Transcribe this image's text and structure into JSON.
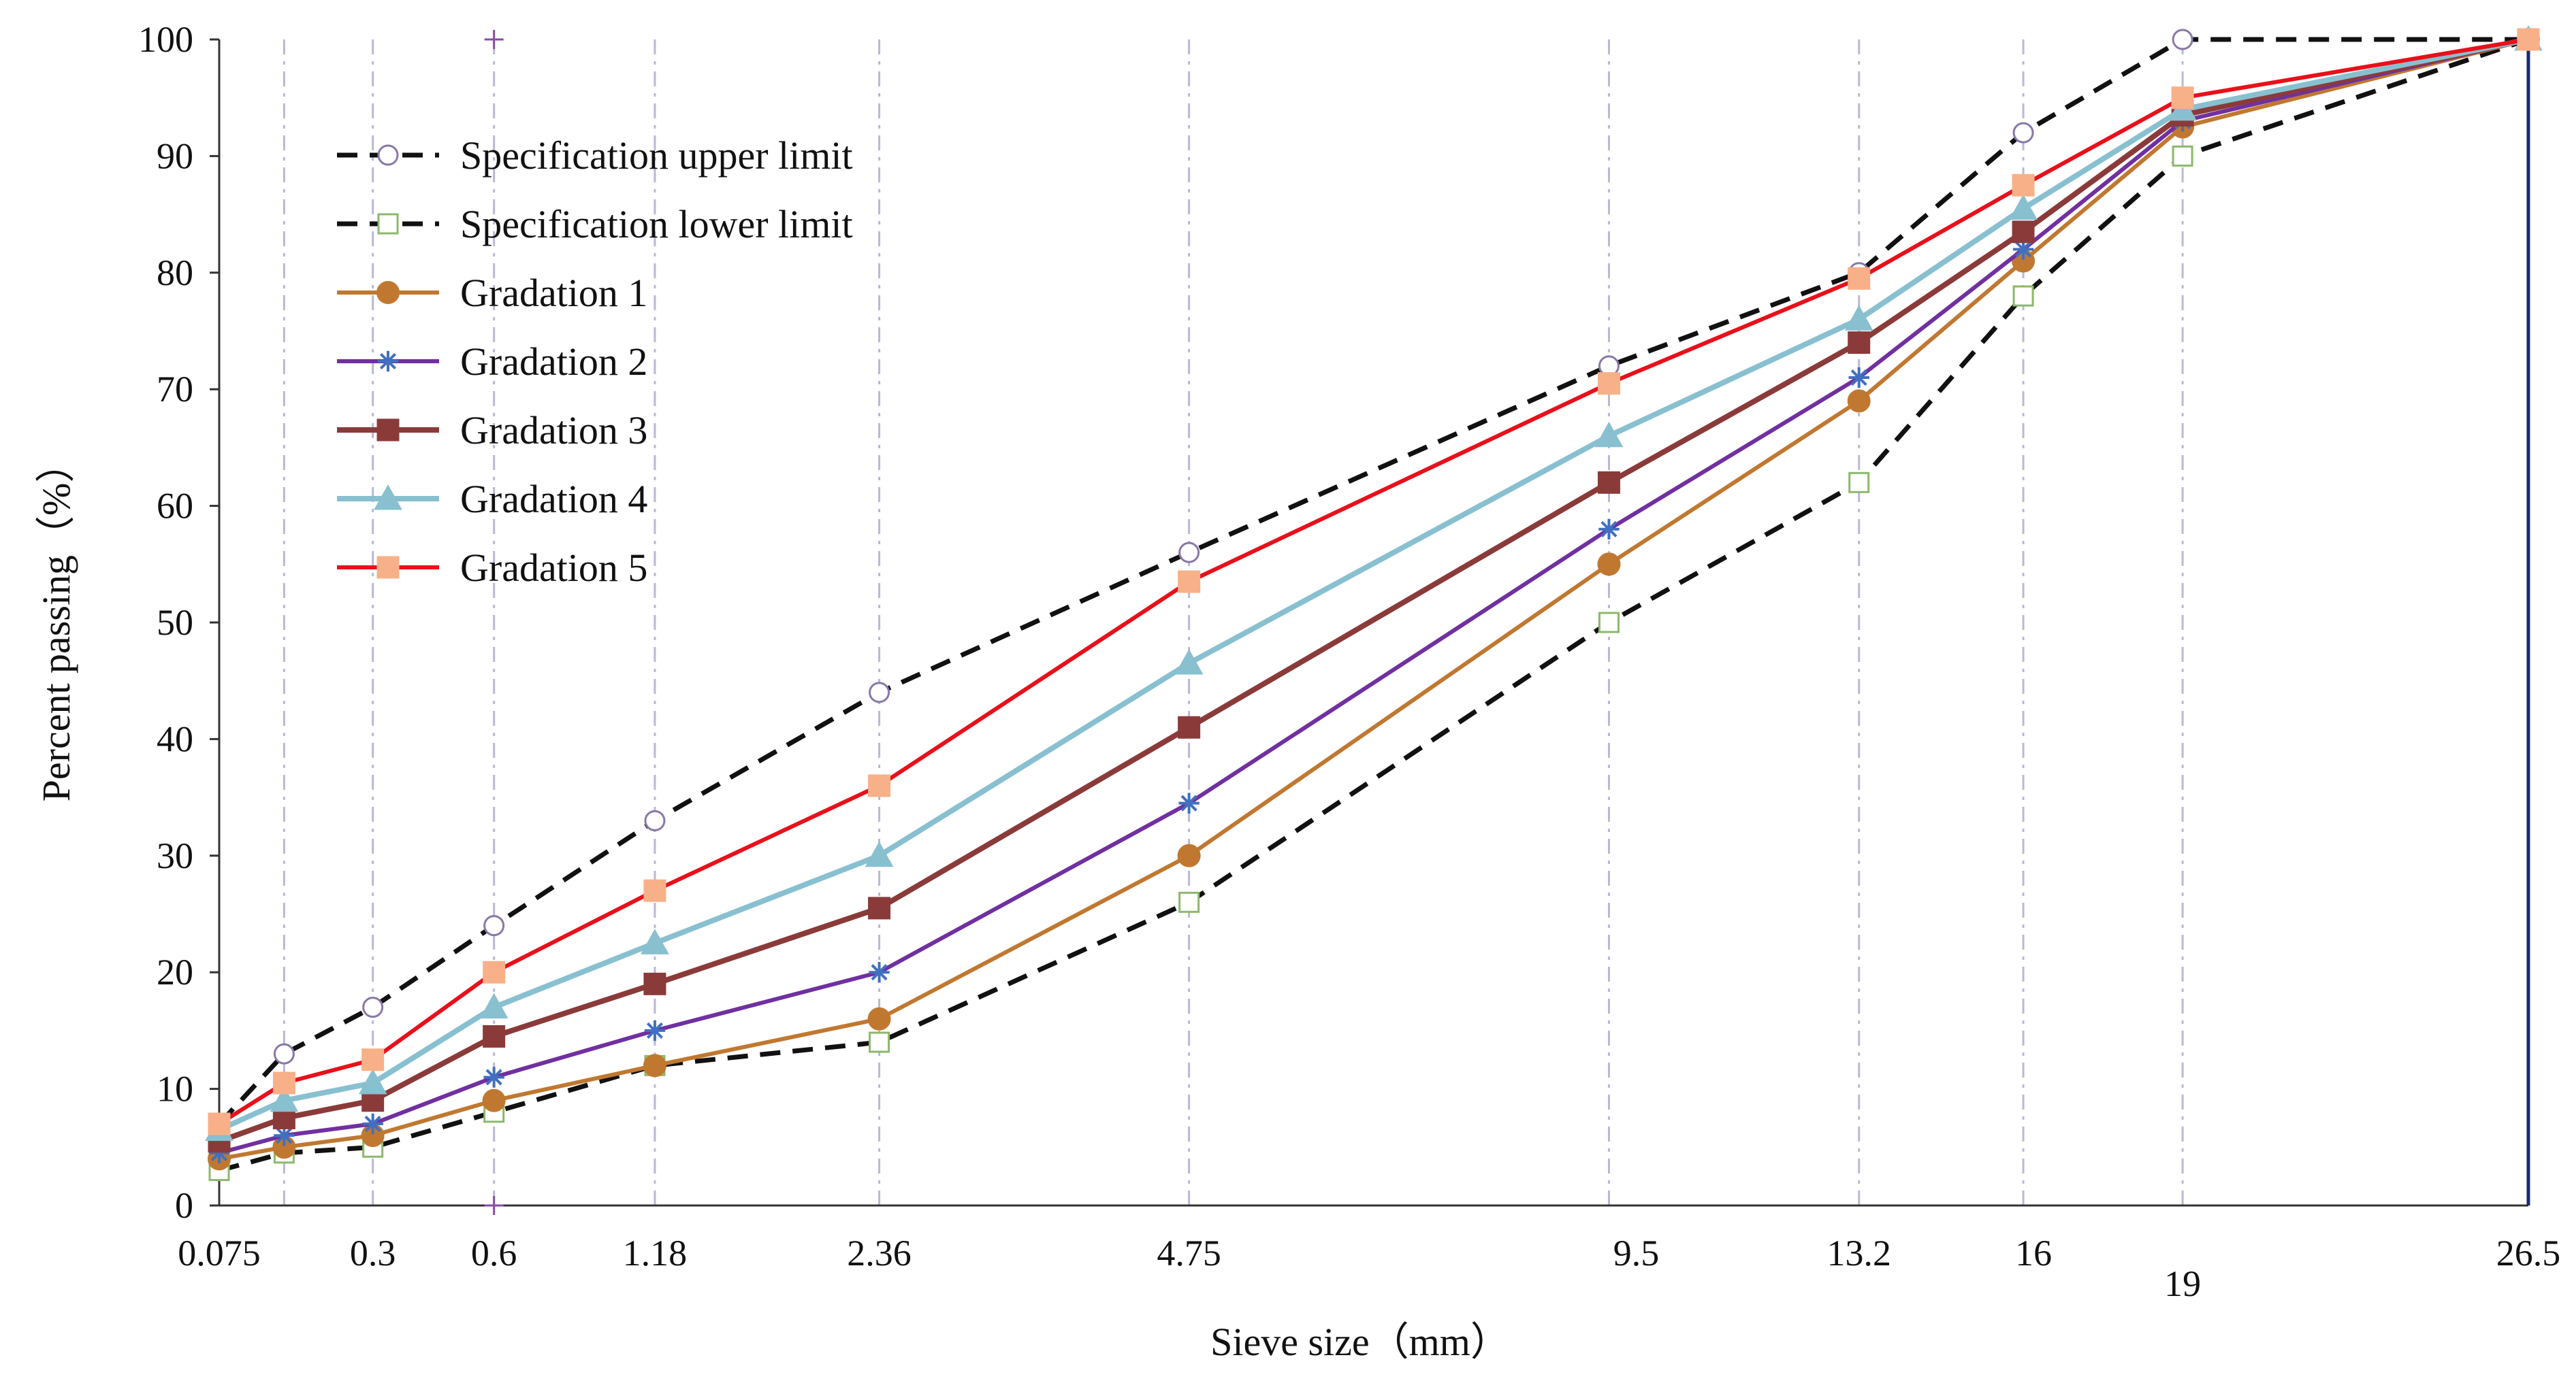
{
  "chart_data": {
    "type": "line",
    "title": "",
    "xlabel": "Sieve  size（mm）",
    "ylabel": "Percent passing（%）",
    "ylim": [
      0,
      100
    ],
    "yticks": [
      0,
      10,
      20,
      30,
      40,
      50,
      60,
      70,
      80,
      90,
      100
    ],
    "x_scale": "gradation (power 0.45)",
    "sieves": [
      0.075,
      0.15,
      0.3,
      0.6,
      1.18,
      2.36,
      4.75,
      9.5,
      13.2,
      16,
      19,
      26.5
    ],
    "x_tick_labels": [
      {
        "value": 0.075,
        "label": "0.075"
      },
      {
        "value": 0.3,
        "label": "0.3"
      },
      {
        "value": 0.6,
        "label": "0.6"
      },
      {
        "value": 1.18,
        "label": "1.18"
      },
      {
        "value": 2.36,
        "label": "2.36"
      },
      {
        "value": 4.75,
        "label": "4.75"
      },
      {
        "value": 9.5,
        "label": "9.5"
      },
      {
        "value": 13.2,
        "label": "13.2"
      },
      {
        "value": 16,
        "label": "16"
      },
      {
        "value": 19,
        "label": "19"
      },
      {
        "value": 26.5,
        "label": "26.5"
      }
    ],
    "legend_position": "top-left",
    "series": [
      {
        "name": "Specification upper limit",
        "color": "#111111",
        "dash": true,
        "marker": "circle-open",
        "marker_color": "#8878a8",
        "width": 3,
        "x": [
          0.075,
          0.15,
          0.3,
          0.6,
          1.18,
          2.36,
          4.75,
          9.5,
          13.2,
          16,
          19,
          26.5
        ],
        "values": [
          7,
          13,
          17,
          24,
          33,
          44,
          56,
          72,
          80,
          92,
          100,
          100
        ]
      },
      {
        "name": "Specification lower limit",
        "color": "#111111",
        "dash": true,
        "marker": "square-open",
        "marker_color": "#8cb86c",
        "width": 3,
        "x": [
          0.075,
          0.15,
          0.3,
          0.6,
          1.18,
          2.36,
          4.75,
          9.5,
          13.2,
          16,
          19,
          26.5
        ],
        "values": [
          3,
          4.5,
          5,
          8,
          12,
          14,
          26,
          50,
          62,
          78,
          90,
          100
        ]
      },
      {
        "name": "Gradation 1",
        "color": "#c07830",
        "dash": false,
        "marker": "circle",
        "marker_color": "#c07830",
        "width": 2,
        "x": [
          0.075,
          0.15,
          0.3,
          0.6,
          1.18,
          2.36,
          4.75,
          9.5,
          13.2,
          16,
          19,
          26.5
        ],
        "values": [
          4,
          5,
          6,
          9,
          12,
          16,
          30,
          55,
          69,
          81,
          92.5,
          100
        ]
      },
      {
        "name": "Gradation 2",
        "color": "#7030a0",
        "dash": false,
        "marker": "star",
        "marker_color": "#4070c0",
        "width": 2,
        "x": [
          0.075,
          0.15,
          0.3,
          0.6,
          1.18,
          2.36,
          4.75,
          9.5,
          13.2,
          16,
          19,
          26.5
        ],
        "values": [
          4.5,
          6,
          7,
          11,
          15,
          20,
          34.5,
          58,
          71,
          82,
          93,
          100
        ]
      },
      {
        "name": "Gradation 3",
        "color": "#8b3a3a",
        "dash": false,
        "marker": "square",
        "marker_color": "#8b3a3a",
        "width": 3,
        "x": [
          0.075,
          0.15,
          0.3,
          0.6,
          1.18,
          2.36,
          4.75,
          9.5,
          13.2,
          16,
          19,
          26.5
        ],
        "values": [
          5.5,
          7.5,
          9,
          14.5,
          19,
          25.5,
          41,
          62,
          74,
          83.5,
          93.5,
          100
        ]
      },
      {
        "name": "Gradation 4",
        "color": "#88c0d0",
        "dash": false,
        "marker": "triangle",
        "marker_color": "#88c0d0",
        "width": 3,
        "x": [
          0.075,
          0.15,
          0.3,
          0.6,
          1.18,
          2.36,
          4.75,
          9.5,
          13.2,
          16,
          19,
          26.5
        ],
        "values": [
          6.5,
          9,
          10.5,
          17,
          22.5,
          30,
          46.5,
          66,
          76,
          85.5,
          94,
          100
        ]
      },
      {
        "name": "Gradation 5",
        "color": "#e8101a",
        "dash": false,
        "marker": "square",
        "marker_color": "#f8b088",
        "width": 2,
        "x": [
          0.075,
          0.15,
          0.3,
          0.6,
          1.18,
          2.36,
          4.75,
          9.5,
          13.2,
          16,
          19,
          26.5
        ],
        "values": [
          7,
          10.5,
          12.5,
          20,
          27,
          36,
          53.5,
          70.5,
          79.5,
          87.5,
          95,
          100
        ]
      }
    ]
  }
}
